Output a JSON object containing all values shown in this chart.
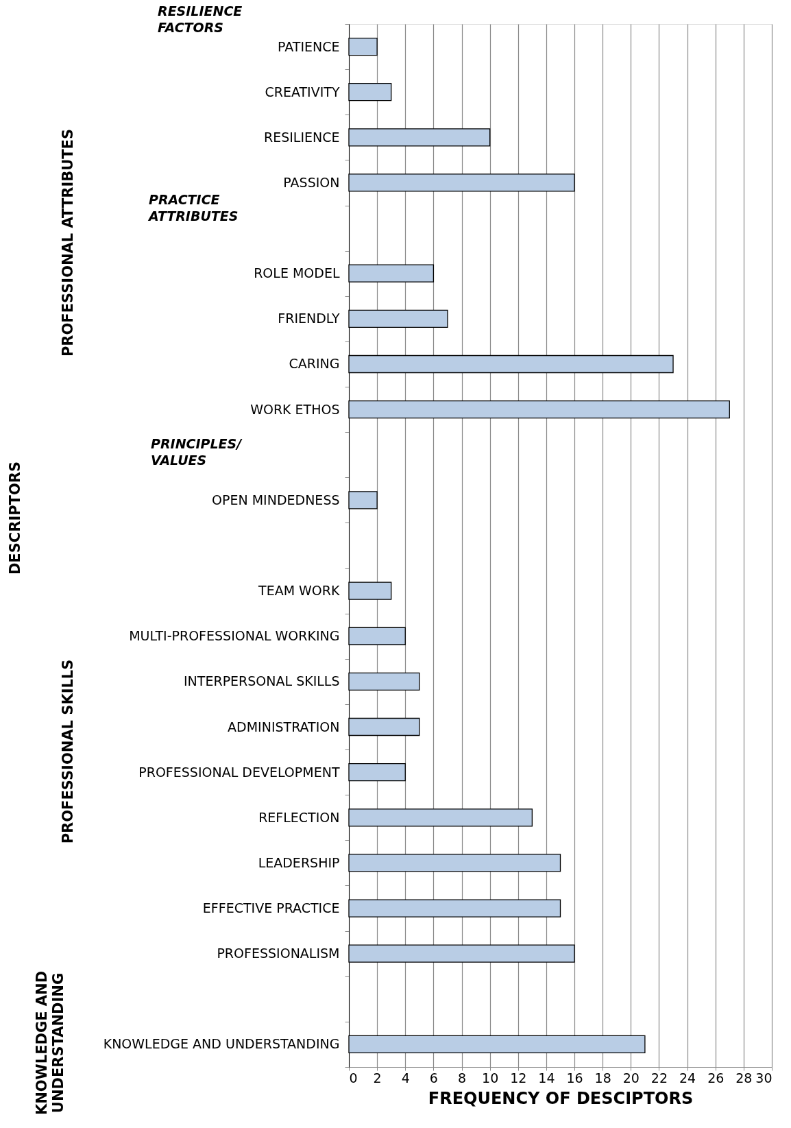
{
  "chart_data": {
    "type": "bar",
    "orientation": "horizontal",
    "xlabel": "FREQUENCY OF DESCIPTORS",
    "categories": [
      "PATIENCE",
      "CREATIVITY",
      "RESILIENCE",
      "PASSION",
      null,
      "ROLE MODEL",
      "FRIENDLY",
      "CARING",
      "WORK ETHOS",
      null,
      "OPEN MINDEDNESS",
      null,
      "TEAM WORK",
      "MULTI-PROFESSIONAL WORKING",
      "INTERPERSONAL SKILLS",
      "ADMINISTRATION",
      "PROFESSIONAL DEVELOPMENT",
      "REFLECTION",
      "LEADERSHIP",
      "EFFECTIVE PRACTICE",
      "PROFESSIONALISM",
      null,
      "KNOWLEDGE AND UNDERSTANDING"
    ],
    "values": [
      2,
      3,
      10,
      16,
      null,
      6,
      7,
      23,
      27,
      null,
      2,
      null,
      3,
      4,
      5,
      5,
      4,
      13,
      15,
      15,
      16,
      null,
      21
    ],
    "color": "#b9cde5",
    "xlim": [
      0,
      30
    ],
    "xticks": [
      0,
      2,
      4,
      6,
      8,
      10,
      12,
      14,
      16,
      18,
      20,
      22,
      24,
      26,
      28,
      30
    ],
    "grid": "x",
    "annotations": [
      "DESCRIPTORS",
      "RESILIENCE\nFACTORS",
      "PRACTICE\nATTRIBUTES",
      "PRINCIPLES/\nVALUES",
      "PROFESSIONAL ATTRIBUTES",
      "PROFESSIONAL SKILLS",
      "KNOWLEDGE AND\nUNDERSTANDING"
    ]
  }
}
